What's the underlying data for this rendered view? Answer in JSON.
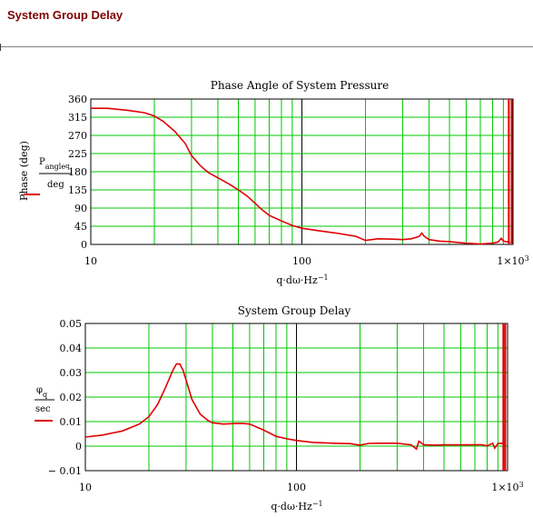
{
  "page": {
    "heading": "System Group Delay"
  },
  "chart_data": [
    {
      "type": "line",
      "title": "Phase Angle of System Pressure",
      "x_scale": "log",
      "xlim": [
        10,
        1000
      ],
      "ylim": [
        0,
        360
      ],
      "grid": true,
      "xticks": [
        "10",
        "100",
        "1×10³"
      ],
      "yticks": [
        "0",
        "45",
        "90",
        "135",
        "180",
        "225",
        "270",
        "315",
        "360"
      ],
      "ylabel": "Phase (deg)",
      "ylabel_fraction": {
        "numerator": "P_angle_q",
        "denominator": "deg"
      },
      "xlabel": "q·dω·Hz⁻¹",
      "series": [
        {
          "color": "#e00000",
          "x": [
            10,
            12,
            15,
            18,
            20,
            22,
            25,
            28,
            30,
            33,
            36,
            40,
            45,
            50,
            55,
            60,
            65,
            70,
            80,
            90,
            100,
            120,
            150,
            180,
            200,
            230,
            270,
            300,
            330,
            360,
            370,
            380,
            400,
            450,
            500,
            600,
            700,
            800,
            850,
            880,
            900,
            950,
            970
          ],
          "y": [
            337,
            337,
            332,
            326,
            318,
            305,
            280,
            250,
            220,
            195,
            178,
            165,
            150,
            135,
            120,
            102,
            85,
            72,
            58,
            47,
            40,
            34,
            27,
            20,
            10,
            14,
            13,
            12,
            14,
            20,
            28,
            20,
            12,
            8,
            7,
            3,
            1,
            3,
            6,
            15,
            8,
            6,
            5
          ]
        }
      ],
      "edge_marks": {
        "color": "#e00000",
        "x": [
          955,
          985
        ],
        "y_range": [
          0,
          360
        ]
      }
    },
    {
      "type": "line",
      "title": "System Group Delay",
      "x_scale": "log",
      "xlim": [
        10,
        1000
      ],
      "ylim": [
        -0.01,
        0.05
      ],
      "grid": true,
      "xticks": [
        "10",
        "100",
        "1×10³"
      ],
      "yticks": [
        "-0.01",
        "0",
        "0.01",
        "0.02",
        "0.03",
        "0.04",
        "0.05"
      ],
      "ylabel_fraction": {
        "numerator": "φ_q",
        "denominator": "sec"
      },
      "xlabel": "q·dω·Hz⁻¹",
      "series": [
        {
          "color": "#e00000",
          "x": [
            10,
            12,
            15,
            18,
            20,
            22,
            24,
            26,
            27,
            28,
            29,
            30,
            32,
            35,
            38,
            40,
            45,
            50,
            55,
            60,
            70,
            80,
            90,
            100,
            120,
            150,
            180,
            200,
            220,
            250,
            300,
            350,
            370,
            380,
            400,
            450,
            500,
            550,
            600,
            700,
            750,
            800,
            850,
            870,
            900,
            950,
            970
          ],
          "y": [
            0.0037,
            0.0045,
            0.0062,
            0.009,
            0.012,
            0.017,
            0.024,
            0.031,
            0.0335,
            0.0335,
            0.031,
            0.027,
            0.019,
            0.013,
            0.0105,
            0.0095,
            0.009,
            0.0092,
            0.0093,
            0.009,
            0.0065,
            0.004,
            0.003,
            0.0023,
            0.0015,
            0.0012,
            0.001,
            0.0004,
            0.0011,
            0.0012,
            0.0012,
            0.0005,
            -0.0012,
            0.002,
            0.0006,
            0.0004,
            0.0005,
            0.0005,
            0.0005,
            0.0005,
            0.0006,
            0.0001,
            0.0012,
            -0.0008,
            0.0011,
            0.0012,
            0.001
          ]
        }
      ],
      "edge_marks": {
        "color": "#e00000",
        "x": [
          955,
          975
        ],
        "y_range": [
          -0.01,
          0.05
        ]
      }
    }
  ]
}
